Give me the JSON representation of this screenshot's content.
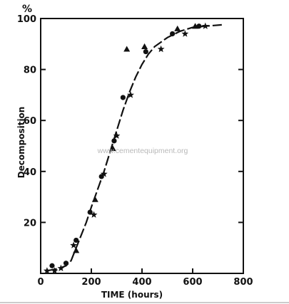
{
  "chart_data": {
    "type": "scatter",
    "xlabel": "TIME (hours)",
    "ylabel": "Decomposition",
    "y_unit": "%",
    "xlim": [
      0,
      800
    ],
    "ylim": [
      0,
      100
    ],
    "x_ticks": [
      0,
      200,
      400,
      600,
      800
    ],
    "y_ticks": [
      20,
      40,
      60,
      80,
      100
    ],
    "grid": false,
    "legend": "none",
    "watermark": "www.cementequipment.org",
    "colors": {
      "ink": "#111111",
      "watermark": "#b9b9b9",
      "rule": "#9a9a9a"
    },
    "series": [
      {
        "marker": "circle",
        "points": [
          {
            "x": 45,
            "y": 3
          },
          {
            "x": 100,
            "y": 4
          },
          {
            "x": 140,
            "y": 13
          },
          {
            "x": 195,
            "y": 24
          },
          {
            "x": 240,
            "y": 38
          },
          {
            "x": 290,
            "y": 52
          },
          {
            "x": 325,
            "y": 69
          },
          {
            "x": 415,
            "y": 87
          },
          {
            "x": 520,
            "y": 94
          },
          {
            "x": 625,
            "y": 97
          }
        ]
      },
      {
        "marker": "triangle",
        "points": [
          {
            "x": 140,
            "y": 9
          },
          {
            "x": 215,
            "y": 29
          },
          {
            "x": 285,
            "y": 49
          },
          {
            "x": 340,
            "y": 88
          },
          {
            "x": 410,
            "y": 89
          },
          {
            "x": 540,
            "y": 96
          },
          {
            "x": 610,
            "y": 97
          }
        ]
      },
      {
        "marker": "star",
        "points": [
          {
            "x": 25,
            "y": 1
          },
          {
            "x": 55,
            "y": 1
          },
          {
            "x": 80,
            "y": 2
          },
          {
            "x": 130,
            "y": 11
          },
          {
            "x": 210,
            "y": 23
          },
          {
            "x": 250,
            "y": 39
          },
          {
            "x": 300,
            "y": 54
          },
          {
            "x": 355,
            "y": 70
          },
          {
            "x": 475,
            "y": 88
          },
          {
            "x": 570,
            "y": 94
          },
          {
            "x": 650,
            "y": 97
          }
        ]
      }
    ],
    "fit_curve": [
      {
        "x": 25,
        "y": 1
      },
      {
        "x": 50,
        "y": 1.5
      },
      {
        "x": 75,
        "y": 2
      },
      {
        "x": 100,
        "y": 3
      },
      {
        "x": 120,
        "y": 5
      },
      {
        "x": 140,
        "y": 10
      },
      {
        "x": 160,
        "y": 15
      },
      {
        "x": 180,
        "y": 20
      },
      {
        "x": 200,
        "y": 26
      },
      {
        "x": 225,
        "y": 33
      },
      {
        "x": 250,
        "y": 40
      },
      {
        "x": 275,
        "y": 48
      },
      {
        "x": 300,
        "y": 56
      },
      {
        "x": 325,
        "y": 64
      },
      {
        "x": 350,
        "y": 71
      },
      {
        "x": 375,
        "y": 77
      },
      {
        "x": 400,
        "y": 82
      },
      {
        "x": 425,
        "y": 86
      },
      {
        "x": 450,
        "y": 89
      },
      {
        "x": 500,
        "y": 92.5
      },
      {
        "x": 550,
        "y": 95
      },
      {
        "x": 600,
        "y": 96.5
      },
      {
        "x": 650,
        "y": 97
      },
      {
        "x": 715,
        "y": 97.5
      }
    ]
  }
}
